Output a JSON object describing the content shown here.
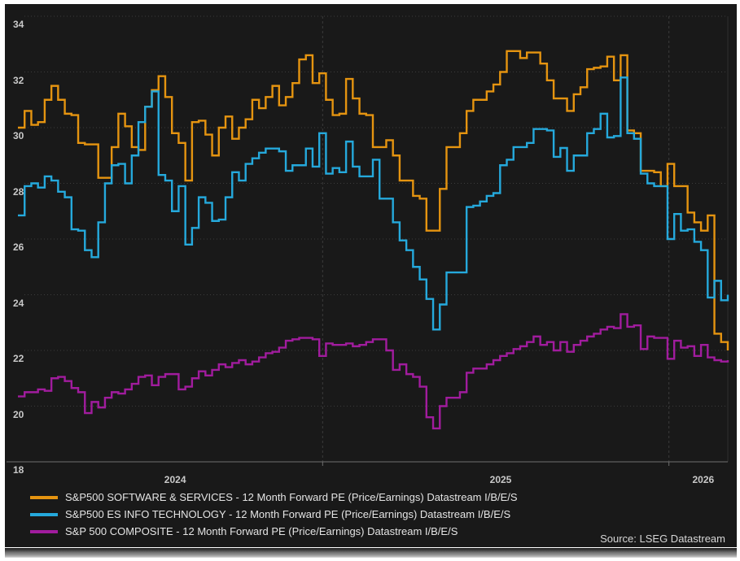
{
  "chart_data": {
    "type": "line",
    "step": true,
    "title": "",
    "xlabel": "",
    "ylabel": "",
    "ylim": [
      18,
      34
    ],
    "y_ticks": [
      18,
      20,
      22,
      24,
      26,
      28,
      30,
      32,
      34
    ],
    "x_start": 2024.12,
    "x_end": 2026.17,
    "x_tick_labels": [
      "2024",
      "2025",
      "2026"
    ],
    "year_gridlines": [
      2025,
      2026
    ],
    "grid": true,
    "legend_position": "bottom-left",
    "background_color": "#191919",
    "source_note": "Source: LSEG Datastream",
    "series": [
      {
        "name": "S&P500 SOFTWARE & SERVICES - 12 Month Forward PE (Price/Earnings) Datastream I/B/E/S",
        "color": "#E59410",
        "values": [
          30.0,
          30.6,
          30.1,
          30.2,
          31.0,
          31.5,
          31.0,
          30.5,
          30.45,
          29.45,
          29.4,
          29.4,
          28.2,
          28.2,
          29.3,
          30.5,
          30.05,
          29.3,
          29.2,
          30.75,
          31.35,
          31.85,
          31.1,
          29.8,
          29.45,
          28.1,
          30.2,
          30.25,
          29.75,
          29.0,
          30.0,
          30.4,
          29.6,
          30.0,
          30.3,
          31.0,
          30.7,
          31.1,
          31.5,
          30.8,
          31.1,
          31.6,
          32.45,
          32.6,
          31.6,
          31.95,
          31.0,
          30.45,
          30.5,
          31.75,
          31.05,
          30.5,
          30.45,
          29.3,
          29.3,
          29.55,
          29.0,
          28.1,
          28.1,
          27.55,
          27.45,
          26.3,
          26.3,
          27.8,
          29.3,
          29.3,
          29.8,
          30.6,
          31.0,
          31.0,
          31.3,
          31.55,
          32.0,
          32.75,
          32.75,
          32.5,
          32.7,
          32.7,
          32.3,
          31.7,
          31.05,
          31.05,
          30.6,
          31.2,
          31.45,
          32.1,
          32.15,
          32.2,
          32.55,
          31.7,
          32.6,
          29.9,
          29.8,
          28.45,
          28.45,
          28.4,
          27.9,
          28.7,
          27.9,
          27.9,
          26.95,
          26.6,
          26.3,
          26.85,
          22.6,
          22.3,
          22.0
        ]
      },
      {
        "name": "S&P500 ES INFO TECHNOLOGY - 12 Month Forward PE (Price/Earnings) Datastream I/B/E/S",
        "color": "#25A9DC",
        "values": [
          26.85,
          27.9,
          28.0,
          27.85,
          28.25,
          28.1,
          27.7,
          27.5,
          26.35,
          26.3,
          25.6,
          25.35,
          26.6,
          28.0,
          28.65,
          28.7,
          28.0,
          29.0,
          30.2,
          30.75,
          31.3,
          28.3,
          28.1,
          27.0,
          27.9,
          25.8,
          26.4,
          27.5,
          27.3,
          26.65,
          26.7,
          27.5,
          28.4,
          28.1,
          28.7,
          28.9,
          29.1,
          29.25,
          29.25,
          29.15,
          28.45,
          28.65,
          28.65,
          29.25,
          28.6,
          29.8,
          28.35,
          28.55,
          28.4,
          29.5,
          28.6,
          28.25,
          28.25,
          28.85,
          27.45,
          27.45,
          26.6,
          25.95,
          25.6,
          25.0,
          24.55,
          23.85,
          22.75,
          23.65,
          24.8,
          24.8,
          24.8,
          27.15,
          27.2,
          27.35,
          27.55,
          27.65,
          28.65,
          28.85,
          29.3,
          29.3,
          29.45,
          29.95,
          29.95,
          29.9,
          28.95,
          29.27,
          28.45,
          29.0,
          29.0,
          29.8,
          29.95,
          30.5,
          29.65,
          29.7,
          31.8,
          29.8,
          29.6,
          28.35,
          28.0,
          27.9,
          27.9,
          26.0,
          26.9,
          26.3,
          26.35,
          25.9,
          25.6,
          23.9,
          24.5,
          23.8,
          24.0
        ]
      },
      {
        "name": "S&P 500 COMPOSITE - 12 Month Forward PE (Price/Earnings) Datastream I/B/E/S",
        "color": "#A11C9E",
        "values": [
          20.35,
          20.5,
          20.5,
          20.6,
          20.55,
          21.0,
          21.05,
          20.9,
          20.65,
          20.5,
          19.75,
          20.15,
          19.95,
          20.3,
          20.5,
          20.45,
          20.6,
          20.8,
          21.05,
          21.1,
          20.75,
          21.05,
          21.15,
          21.15,
          20.6,
          20.7,
          21.0,
          21.25,
          21.1,
          21.3,
          21.5,
          21.4,
          21.55,
          21.65,
          21.5,
          21.6,
          21.75,
          21.9,
          21.95,
          22.1,
          22.35,
          22.4,
          22.45,
          22.45,
          22.4,
          21.8,
          22.25,
          22.2,
          22.2,
          22.25,
          22.15,
          22.2,
          22.3,
          22.4,
          22.4,
          22.0,
          21.3,
          21.5,
          21.15,
          21.05,
          20.7,
          19.6,
          19.2,
          20.0,
          20.3,
          20.3,
          20.5,
          21.2,
          21.35,
          21.35,
          21.5,
          21.65,
          21.8,
          21.9,
          22.05,
          22.15,
          22.3,
          22.5,
          22.2,
          22.3,
          22.0,
          22.3,
          21.95,
          22.2,
          22.35,
          22.5,
          22.6,
          22.75,
          22.85,
          22.8,
          23.3,
          22.85,
          22.9,
          22.05,
          22.5,
          22.45,
          22.45,
          21.7,
          22.35,
          22.1,
          22.15,
          21.8,
          22.2,
          21.75,
          21.65,
          21.6,
          21.65
        ]
      }
    ]
  }
}
